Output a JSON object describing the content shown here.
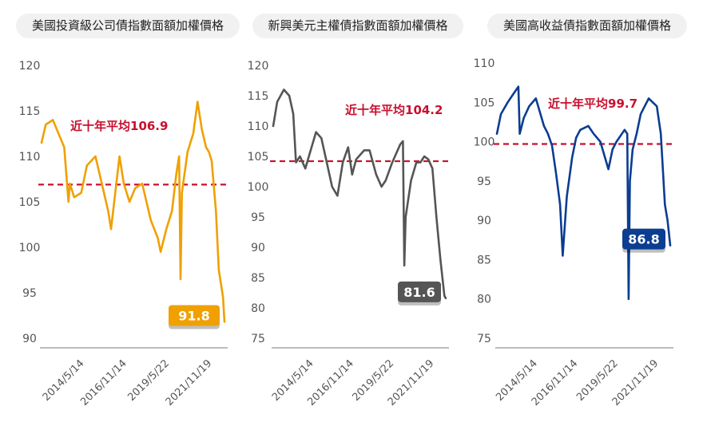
{
  "chart_data": [
    {
      "type": "line",
      "title": "美國投資級公司債指數面額加權價格",
      "color": "#F0A000",
      "label_color": "#C8102E",
      "ylim": [
        90,
        120
      ],
      "yticks": [
        "120",
        "115",
        "110",
        "105",
        "100",
        "95",
        "90"
      ],
      "xticks": [
        "2014/5/14",
        "2016/11/14",
        "2019/5/22",
        "2021/11/19"
      ],
      "reference": {
        "label": "近十年平均106.9",
        "value": 106.9
      },
      "last_value_label": "91.8",
      "series": [
        {
          "x": [
            "2012-01",
            "2012-04",
            "2012-09",
            "2013-01",
            "2013-05",
            "2013-08",
            "2013-09",
            "2013-12",
            "2014-05",
            "2014-09",
            "2015-03",
            "2015-06",
            "2015-09",
            "2015-12",
            "2016-02",
            "2016-05",
            "2016-08",
            "2016-11",
            "2017-03",
            "2017-07",
            "2017-12",
            "2018-06",
            "2018-11",
            "2019-01",
            "2019-05",
            "2019-09",
            "2019-12",
            "2020-02",
            "2020-03",
            "2020-04",
            "2020-08",
            "2020-12",
            "2021-03",
            "2021-06",
            "2021-09",
            "2021-11",
            "2022-01",
            "2022-04",
            "2022-06",
            "2022-09",
            "2022-10"
          ],
          "values": [
            111.5,
            113.5,
            114.0,
            112.5,
            111.0,
            105.0,
            107.0,
            105.5,
            106.0,
            109.0,
            110.0,
            108.0,
            106.0,
            104.0,
            102.0,
            106.0,
            110.0,
            107.0,
            105.0,
            106.5,
            107.0,
            103.0,
            101.0,
            99.5,
            102.0,
            104.0,
            108.0,
            110.0,
            96.5,
            106.0,
            110.5,
            112.5,
            116.0,
            113.0,
            111.0,
            110.5,
            109.5,
            104.0,
            97.5,
            94.5,
            91.8
          ]
        }
      ]
    },
    {
      "type": "line",
      "title": "新興美元主權債指數面額加權價格",
      "color": "#555555",
      "label_color": "#C8102E",
      "ylim": [
        75,
        120
      ],
      "yticks": [
        "120",
        "115",
        "110",
        "105",
        "100",
        "95",
        "90",
        "85",
        "80",
        "75"
      ],
      "xticks": [
        "2014/5/14",
        "2016/11/14",
        "2019/5/22",
        "2021/11/19"
      ],
      "reference": {
        "label": "近十年平均104.2",
        "value": 104.2
      },
      "last_value_label": "81.6",
      "series": [
        {
          "x": [
            "2012-01",
            "2012-04",
            "2012-09",
            "2013-01",
            "2013-04",
            "2013-06",
            "2013-09",
            "2014-01",
            "2014-05",
            "2014-09",
            "2015-01",
            "2015-06",
            "2015-09",
            "2016-01",
            "2016-05",
            "2016-09",
            "2016-12",
            "2017-03",
            "2017-09",
            "2018-01",
            "2018-06",
            "2018-10",
            "2019-01",
            "2019-06",
            "2019-12",
            "2020-02",
            "2020-03",
            "2020-04",
            "2020-08",
            "2020-12",
            "2021-03",
            "2021-06",
            "2021-09",
            "2021-12",
            "2022-03",
            "2022-06",
            "2022-09",
            "2022-10"
          ],
          "values": [
            110.0,
            114.0,
            116.0,
            115.0,
            112.0,
            104.0,
            105.0,
            103.0,
            106.0,
            109.0,
            108.0,
            103.0,
            100.0,
            98.5,
            104.0,
            106.5,
            102.0,
            104.5,
            106.0,
            106.0,
            102.0,
            100.0,
            101.0,
            104.0,
            107.0,
            107.5,
            87.0,
            95.0,
            101.0,
            104.0,
            104.0,
            105.0,
            104.5,
            103.0,
            95.0,
            88.0,
            82.0,
            81.6
          ]
        }
      ]
    },
    {
      "type": "line",
      "title": "美國高收益債指數面額加權價格",
      "color": "#0B3D91",
      "label_color": "#C8102E",
      "ylim": [
        75,
        110
      ],
      "yticks": [
        "110",
        "105",
        "100",
        "95",
        "90",
        "85",
        "80",
        "75"
      ],
      "xticks": [
        "2014/5/14",
        "2016/11/14",
        "2019/5/22",
        "2021/11/19"
      ],
      "reference": {
        "label": "近十年平均99.7",
        "value": 99.7
      },
      "last_value_label": "86.8",
      "series": [
        {
          "x": [
            "2012-01",
            "2012-04",
            "2012-09",
            "2013-01",
            "2013-05",
            "2013-06",
            "2013-09",
            "2014-01",
            "2014-06",
            "2014-12",
            "2015-03",
            "2015-06",
            "2015-09",
            "2015-12",
            "2016-02",
            "2016-05",
            "2016-09",
            "2016-12",
            "2017-03",
            "2017-09",
            "2018-01",
            "2018-06",
            "2018-12",
            "2019-03",
            "2019-06",
            "2019-12",
            "2020-02",
            "2020-03",
            "2020-04",
            "2020-06",
            "2020-09",
            "2020-12",
            "2021-03",
            "2021-06",
            "2021-09",
            "2021-12",
            "2022-03",
            "2022-06",
            "2022-08",
            "2022-10"
          ],
          "values": [
            101.0,
            103.5,
            105.0,
            106.0,
            107.0,
            101.0,
            103.0,
            104.5,
            105.5,
            102.0,
            101.0,
            99.5,
            96.0,
            92.0,
            85.5,
            93.0,
            98.0,
            100.5,
            101.5,
            102.0,
            101.0,
            100.0,
            96.5,
            99.0,
            100.0,
            101.5,
            101.0,
            80.0,
            95.0,
            99.0,
            101.0,
            103.5,
            104.5,
            105.5,
            105.0,
            104.5,
            101.0,
            92.0,
            90.0,
            86.8
          ]
        }
      ]
    }
  ]
}
